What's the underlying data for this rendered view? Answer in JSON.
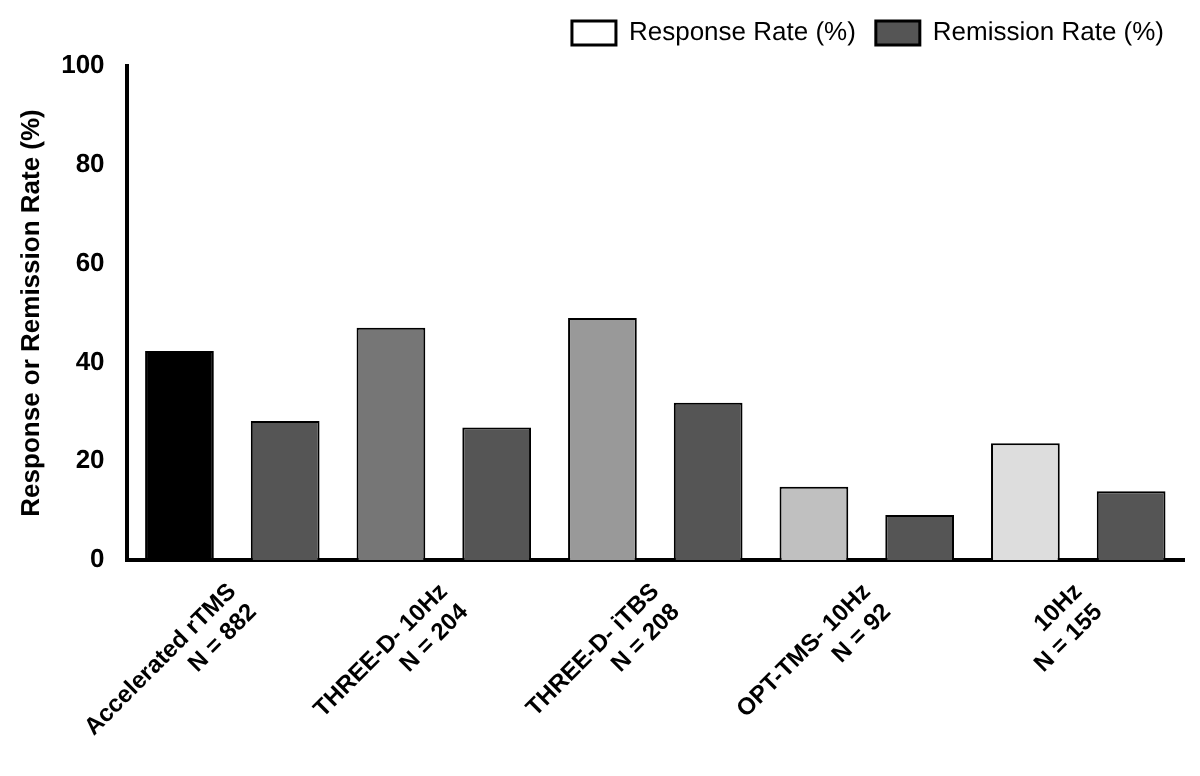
{
  "chart_data": {
    "type": "bar",
    "ylabel": "Response or Remission Rate (%)",
    "categories": [
      "Accelerated rTMS\nN = 882",
      "THREE-D- 10Hz\nN = 204",
      "THREE-D- iTBS\nN = 208",
      "OPT-TMS- 10Hz\nN = 92",
      "10Hz\nN = 155"
    ],
    "series": [
      {
        "name": "Response Rate (%)",
        "color": "#ffffff",
        "colors": [
          "#000000",
          "#767676",
          "#999999",
          "#c0c0c0",
          "#dddddd"
        ],
        "values": [
          42.3,
          47,
          49,
          14.8,
          23.6
        ]
      },
      {
        "name": "Remission Rate (%)",
        "color": "#555555",
        "values": [
          28.1,
          26.8,
          31.8,
          9.1,
          13.9
        ]
      }
    ],
    "ylim": [
      0,
      100
    ],
    "yticks": [
      0,
      20,
      40,
      60,
      80,
      100
    ],
    "grid": false,
    "legend": "top right"
  }
}
